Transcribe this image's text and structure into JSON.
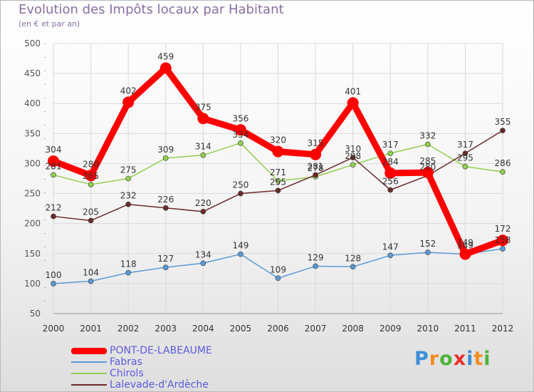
{
  "header": {
    "title": "Evolution des Impôts locaux par Habitant",
    "subtitle": "(en € et par an)"
  },
  "brand": {
    "letters": [
      "P",
      "r",
      "o",
      "x",
      "i",
      "t",
      "i"
    ],
    "colors": [
      "#3d8fd6",
      "#f28c1f",
      "#4fb23a",
      "#e8312f",
      "#3d8fd6",
      "#f28c1f",
      "#4fb23a"
    ]
  },
  "chart_data": {
    "type": "line",
    "title": "Evolution des Impôts locaux par Habitant",
    "subtitle": "(en € et par an)",
    "xlabel": "",
    "ylabel": "",
    "categories": [
      "2000",
      "2001",
      "2002",
      "2003",
      "2004",
      "2005",
      "2006",
      "2007",
      "2008",
      "2009",
      "2010",
      "2011",
      "2012"
    ],
    "ylim": [
      50,
      500
    ],
    "yticks": [
      50,
      100,
      150,
      200,
      250,
      300,
      350,
      400,
      450,
      500
    ],
    "grid": true,
    "legend_position": "bottom-left",
    "series": [
      {
        "name": "PONT-DE-LABEAUME",
        "color": "#ff0000",
        "width": "thick",
        "values": [
          304,
          280,
          402,
          459,
          375,
          356,
          320,
          315,
          401,
          284,
          285,
          149,
          172
        ]
      },
      {
        "name": "Fabras",
        "color": "#5b9bd5",
        "values": [
          100,
          104,
          118,
          127,
          134,
          149,
          109,
          129,
          128,
          147,
          152,
          149,
          158
        ]
      },
      {
        "name": "Chirols",
        "color": "#92d050",
        "values": [
          281,
          265,
          275,
          309,
          314,
          334,
          271,
          278,
          298,
          317,
          332,
          295,
          286
        ]
      },
      {
        "name": "Lalevade-d'Ardèche",
        "color": "#6b2a2a",
        "values": [
          212,
          205,
          232,
          226,
          220,
          250,
          255,
          281,
          310,
          256,
          280,
          317,
          355
        ]
      }
    ]
  }
}
